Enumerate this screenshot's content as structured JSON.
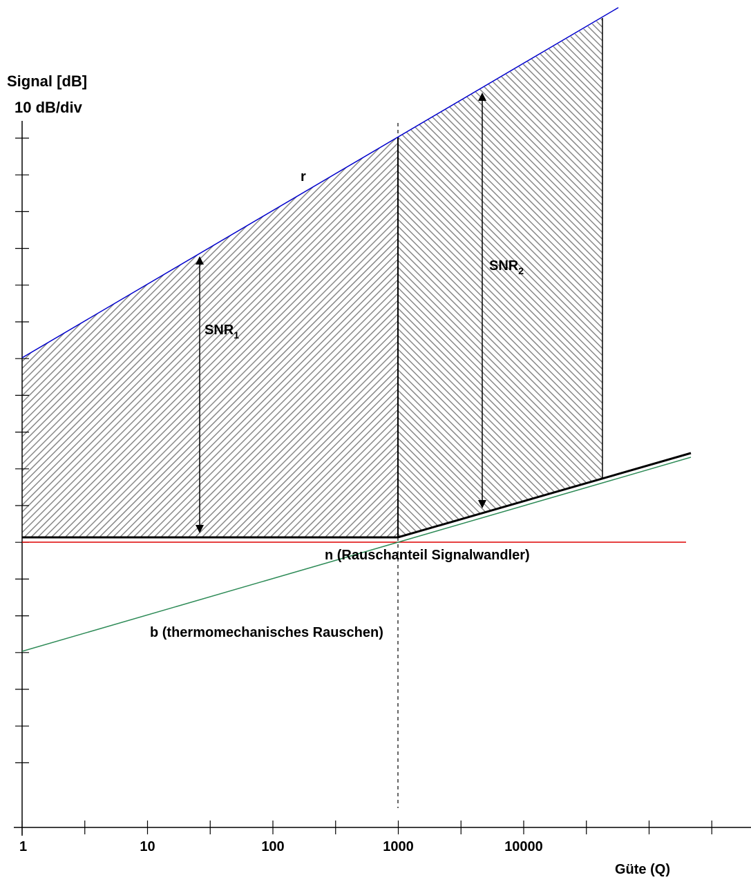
{
  "chart_data": {
    "type": "line",
    "title": "",
    "ylabel_line1": "Signal [dB]",
    "ylabel_line2": "10 dB/div",
    "xlabel": "Güte (Q)",
    "x_scale": "log",
    "x_tick_labels": [
      "1",
      "10",
      "100",
      "1000",
      "10000"
    ],
    "y_unit_per_division": "10 dB/div",
    "y_tick_count": 18,
    "series": [
      {
        "name": "r",
        "color": "#0000cc",
        "x": [
          1,
          80000
        ],
        "y_div": [
          5,
          14.5
        ]
      },
      {
        "name": "n (Rauschanteil Signalwandler)",
        "color": "#dd0000",
        "x": [
          1,
          1000
        ],
        "y_div": [
          0,
          0
        ]
      },
      {
        "name": "b (thermomechanisches Rauschen)",
        "color": "#2e8b57",
        "x": [
          1,
          80000
        ],
        "y_div": [
          -3,
          2.7
        ]
      },
      {
        "name": "",
        "color": "#000000",
        "x": [
          1,
          1000,
          80000
        ],
        "y_div": [
          0.15,
          0.15,
          2.4
        ]
      }
    ],
    "annotations": [
      {
        "label": "SNR",
        "subscript": "1",
        "x": 25
      },
      {
        "label": "SNR",
        "subscript": "2",
        "x": 4500
      }
    ],
    "vertical_reference_x": 1000
  },
  "colors": {
    "signal_line": "#0000cc",
    "transducer_noise": "#dd0000",
    "thermomechanical_noise": "#2e8b57",
    "total_noise": "#000000",
    "hatch": "#888888"
  }
}
